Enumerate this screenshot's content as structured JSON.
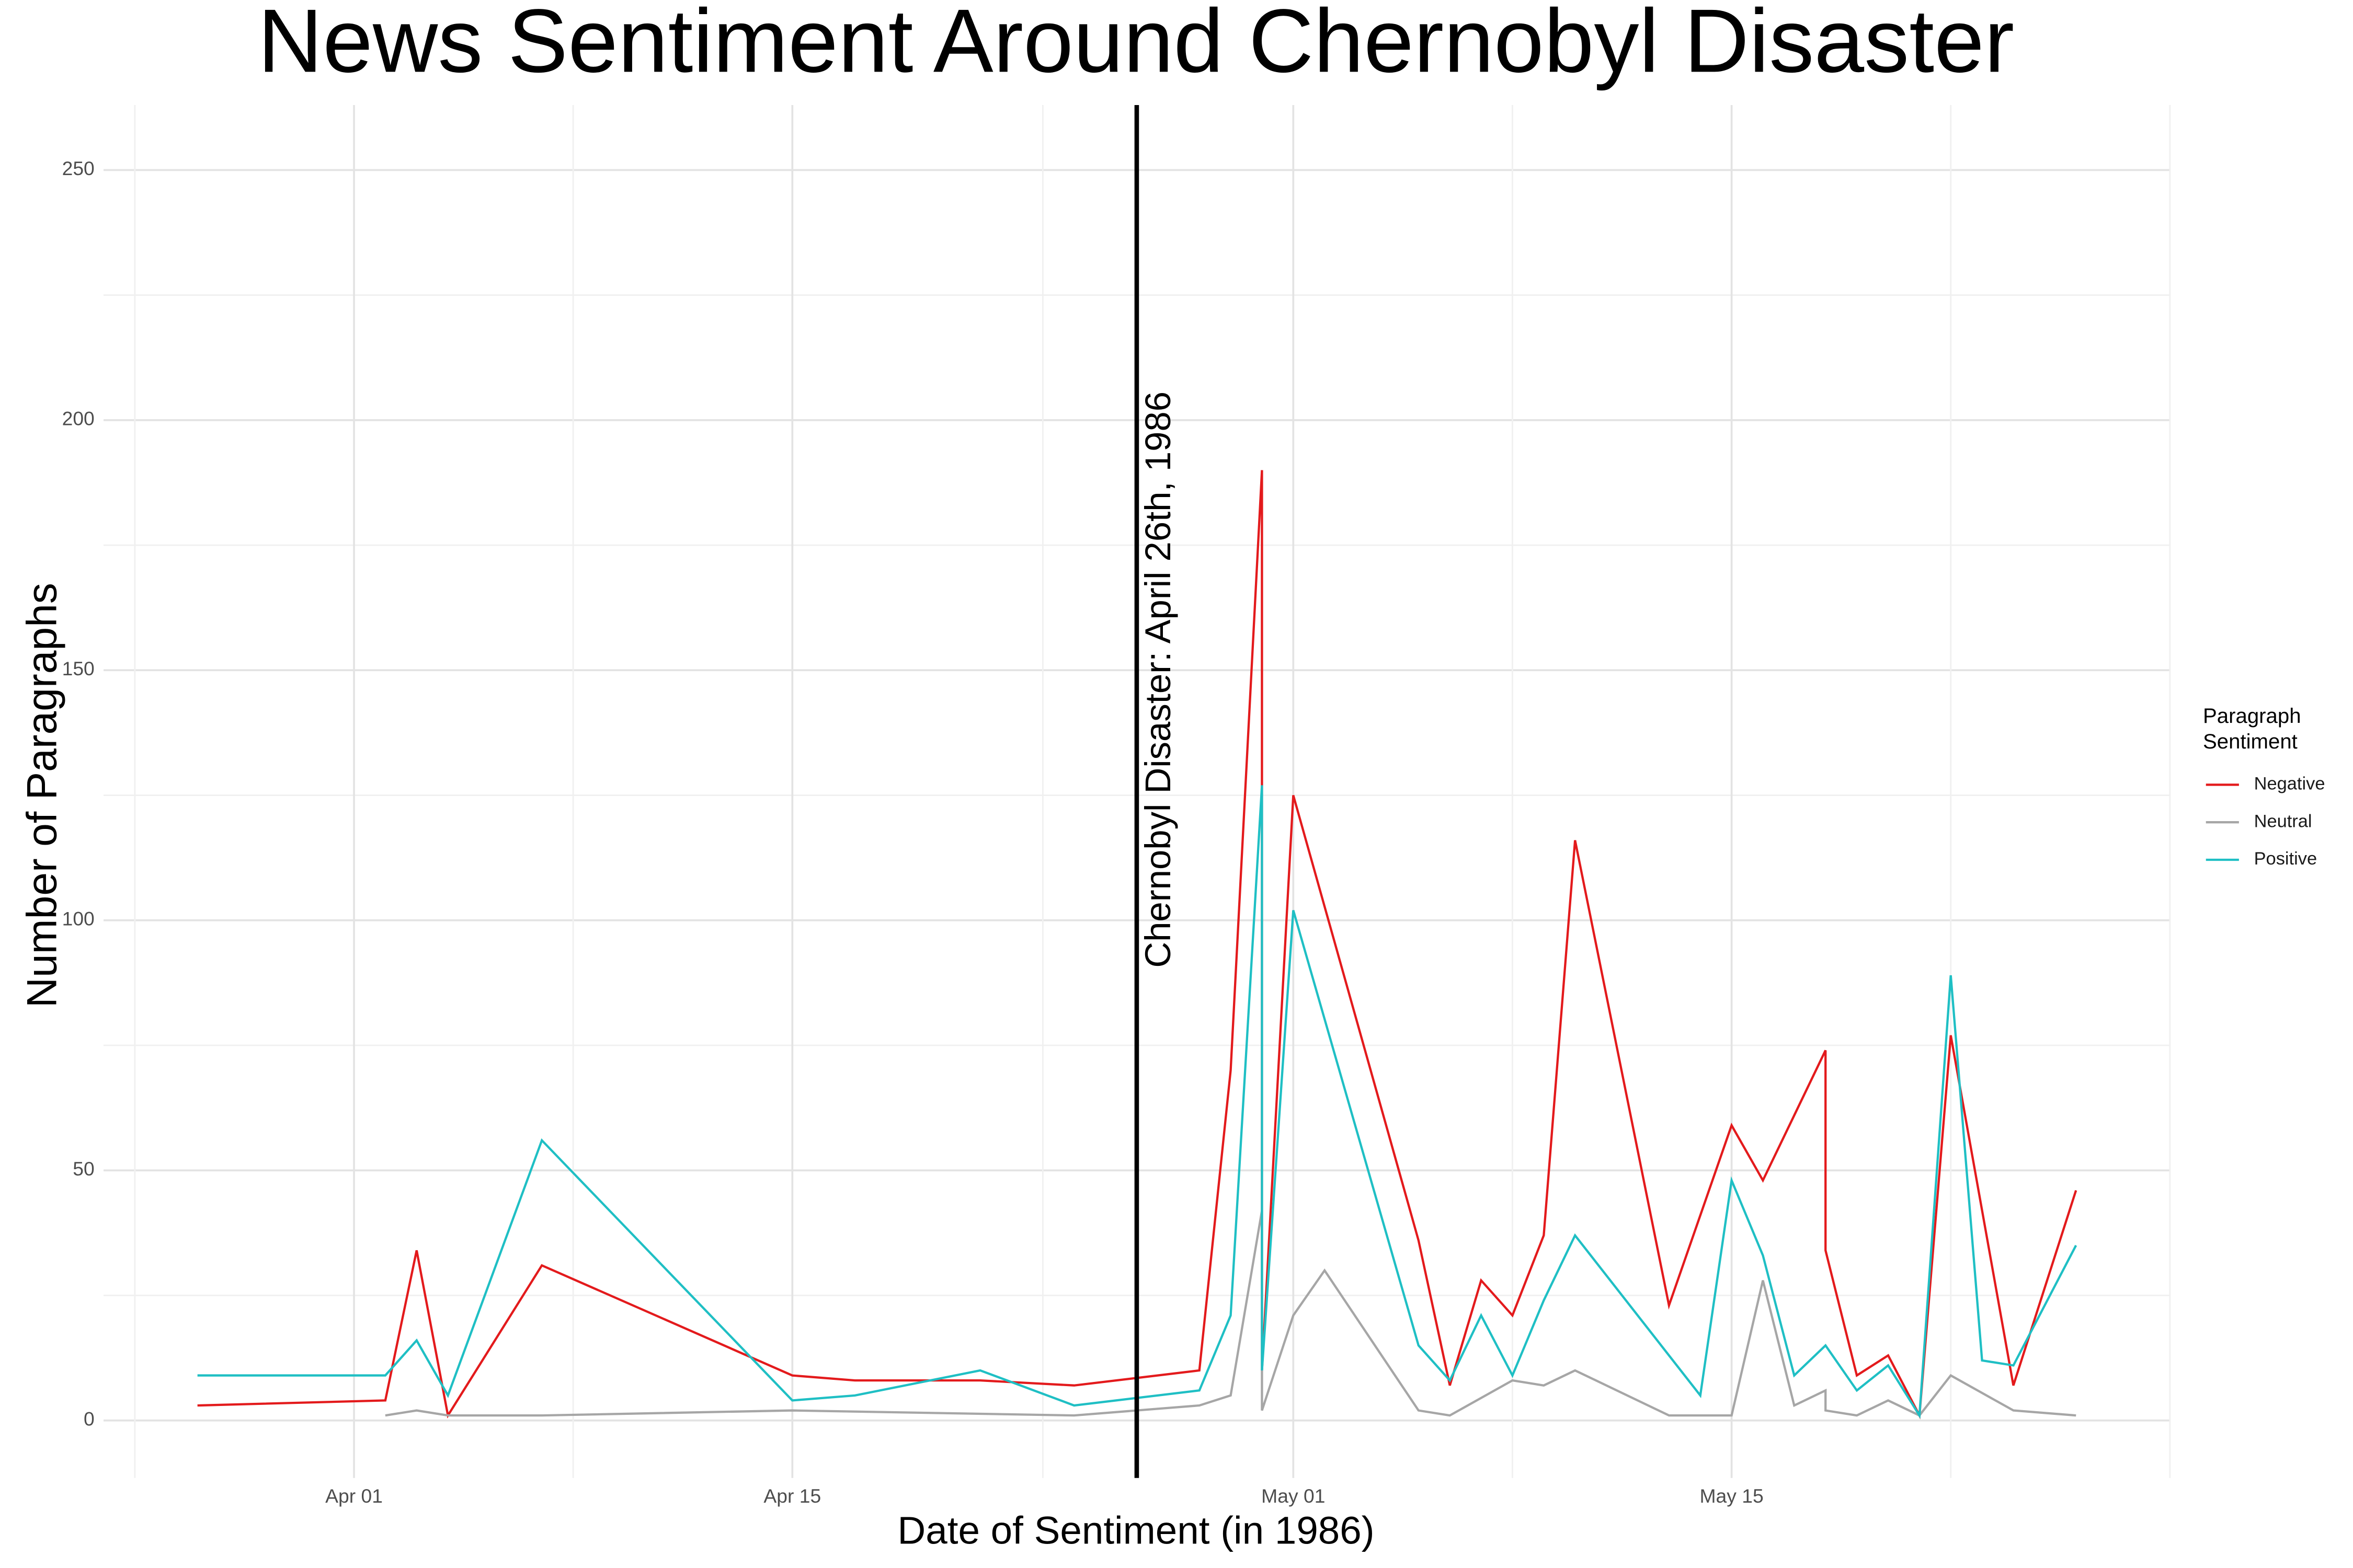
{
  "chart_data": {
    "type": "line",
    "title": "News Sentiment Around Chernobyl Disaster",
    "x_label": "Date of Sentiment (in 1986)",
    "y_label": "Number of Paragraphs",
    "legend_title": "Paragraph\nSentiment",
    "legend_position": "right",
    "grid": true,
    "annotation": {
      "x": "1986-04-26",
      "text": "Chernobyl Disaster: April 26th, 1986"
    },
    "xlim": [
      "1986-03-24",
      "1986-05-29"
    ],
    "xticks": [
      {
        "value": "1986-04-01",
        "label": "Apr 01"
      },
      {
        "value": "1986-04-15",
        "label": "Apr 15"
      },
      {
        "value": "1986-05-01",
        "label": "May 01"
      },
      {
        "value": "1986-05-15",
        "label": "May 15"
      }
    ],
    "ylim": [
      -11.5,
      263
    ],
    "yticks": [
      0,
      50,
      100,
      150,
      200,
      250
    ],
    "series": [
      {
        "name": "Negative",
        "color": "#e31a1c",
        "x": [
          "1986-03-27",
          "1986-04-02",
          "1986-04-03",
          "1986-04-04",
          "1986-04-07",
          "1986-04-15",
          "1986-04-17",
          "1986-04-21",
          "1986-04-24",
          "1986-04-28",
          "1986-04-29",
          "1986-04-30",
          "1986-04-30",
          "1986-05-01",
          "1986-05-05",
          "1986-05-06",
          "1986-05-07",
          "1986-05-08",
          "1986-05-09",
          "1986-05-10",
          "1986-05-13",
          "1986-05-15",
          "1986-05-16",
          "1986-05-18",
          "1986-05-18",
          "1986-05-19",
          "1986-05-20",
          "1986-05-21",
          "1986-05-22",
          "1986-05-24",
          "1986-05-26"
        ],
        "values": [
          3,
          4,
          34,
          1,
          31,
          9,
          8,
          8,
          7,
          10,
          70,
          190,
          10,
          125,
          36,
          7,
          28,
          21,
          37,
          116,
          23,
          59,
          48,
          74,
          34,
          9,
          13,
          1,
          77,
          7,
          46
        ]
      },
      {
        "name": "Neutral",
        "color": "#a6a6a6",
        "x": [
          "1986-04-02",
          "1986-04-03",
          "1986-04-04",
          "1986-04-07",
          "1986-04-15",
          "1986-04-24",
          "1986-04-28",
          "1986-04-29",
          "1986-04-30",
          "1986-04-30",
          "1986-05-01",
          "1986-05-02",
          "1986-05-05",
          "1986-05-06",
          "1986-05-08",
          "1986-05-09",
          "1986-05-10",
          "1986-05-13",
          "1986-05-15",
          "1986-05-16",
          "1986-05-17",
          "1986-05-18",
          "1986-05-18",
          "1986-05-19",
          "1986-05-20",
          "1986-05-21",
          "1986-05-22",
          "1986-05-24",
          "1986-05-26"
        ],
        "values": [
          1,
          2,
          1,
          1,
          2,
          1,
          3,
          5,
          42,
          2,
          21,
          30,
          2,
          1,
          8,
          7,
          10,
          1,
          1,
          28,
          3,
          6,
          2,
          1,
          4,
          1,
          9,
          2,
          1
        ]
      },
      {
        "name": "Positive",
        "color": "#1fbfc4",
        "x": [
          "1986-03-27",
          "1986-04-02",
          "1986-04-03",
          "1986-04-04",
          "1986-04-07",
          "1986-04-15",
          "1986-04-17",
          "1986-04-21",
          "1986-04-24",
          "1986-04-28",
          "1986-04-29",
          "1986-04-30",
          "1986-04-30",
          "1986-05-01",
          "1986-05-05",
          "1986-05-06",
          "1986-05-07",
          "1986-05-08",
          "1986-05-09",
          "1986-05-10",
          "1986-05-14",
          "1986-05-15",
          "1986-05-16",
          "1986-05-17",
          "1986-05-18",
          "1986-05-19",
          "1986-05-20",
          "1986-05-21",
          "1986-05-22",
          "1986-05-23",
          "1986-05-24",
          "1986-05-26"
        ],
        "values": [
          9,
          9,
          16,
          5,
          56,
          4,
          5,
          10,
          3,
          6,
          21,
          127,
          10,
          102,
          15,
          8,
          21,
          9,
          24,
          37,
          5,
          48,
          33,
          9,
          15,
          6,
          11,
          1,
          89,
          12,
          11,
          35
        ]
      }
    ]
  }
}
